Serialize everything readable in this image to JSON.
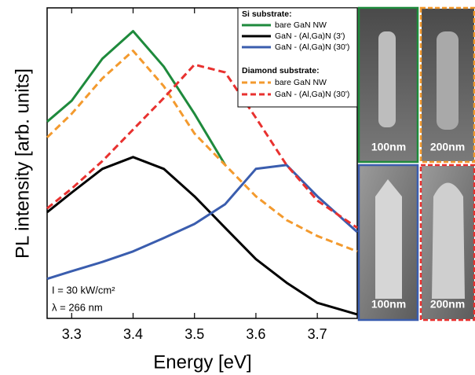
{
  "chart_data": {
    "type": "line",
    "xlabel": "Energy [eV]",
    "ylabel": "PL intensity [arb. units]",
    "x": [
      3.26,
      3.3,
      3.35,
      3.4,
      3.45,
      3.5,
      3.55,
      3.6,
      3.65,
      3.7,
      3.765
    ],
    "series": [
      {
        "name": "bare GaN NW",
        "color": "#1e8a3c",
        "style": "solid",
        "values": [
          398,
          832,
          3630,
          9550,
          2750,
          525,
          87,
          null,
          null,
          null,
          null
        ]
      },
      {
        "name": "GaN - (Al,Ga)N (3')",
        "color": "#000000",
        "style": "solid",
        "values": [
          16.6,
          33,
          76,
          115,
          76,
          29,
          9.6,
          3.2,
          1.4,
          0.69,
          0.46
        ]
      },
      {
        "name": "GaN - (Al,Ga)N (30')",
        "color": "#3a5dae",
        "style": "solid",
        "values": [
          1.6,
          2.1,
          2.9,
          4.2,
          6.7,
          11,
          22,
          76,
          87,
          29,
          8.3
        ]
      },
      {
        "name": "bare GaN NW",
        "color": "#f39a2e",
        "style": "dashed",
        "values": [
          229,
          525,
          1820,
          4790,
          1380,
          263,
          87,
          29,
          12.6,
          7.2,
          4.2
        ]
      },
      {
        "name": "GaN - (Al,Ga)N (30')",
        "color": "#e8312f",
        "style": "dashed",
        "values": [
          19,
          38,
          100,
          302,
          912,
          2950,
          2240,
          457,
          87,
          25,
          9.6
        ]
      }
    ],
    "legend_titles": [
      "Si substrate:",
      "Diamond substrate:"
    ],
    "annotations": [
      "I = 30 kW/cm²",
      "λ = 266 nm"
    ],
    "xlim": [
      3.26,
      3.765
    ],
    "xticks": [
      3.3,
      3.4,
      3.5,
      3.6,
      3.7
    ],
    "ylim": [
      0.4,
      21600
    ],
    "log_y": true
  },
  "sem_images": [
    {
      "scale_bar": "100nm"
    },
    {
      "scale_bar": "200nm"
    },
    {
      "scale_bar": "100nm"
    },
    {
      "scale_bar": "200nm"
    }
  ]
}
